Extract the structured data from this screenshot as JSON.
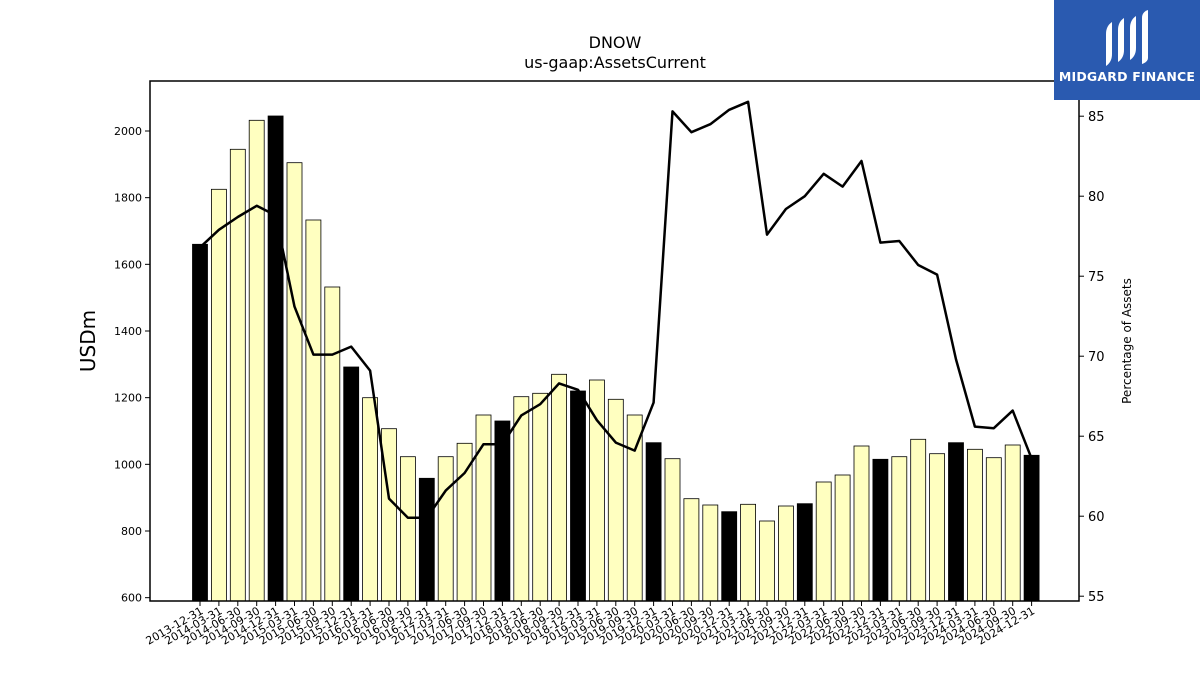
{
  "chart_data": {
    "type": "bar",
    "title": "DNOW",
    "subtitle": "us-gaap:AssetsCurrent",
    "ylabel": "USDm",
    "y2label": "Percentage of Assets",
    "ylim": [
      590,
      2150
    ],
    "y2lim": [
      54.7,
      87.2
    ],
    "yticks": [
      600,
      800,
      1000,
      1200,
      1400,
      1600,
      1800,
      2000
    ],
    "y2ticks": [
      55,
      60,
      65,
      70,
      75,
      80,
      85
    ],
    "categories": [
      "2013-12-31",
      "2014-03-31",
      "2014-06-30",
      "2014-09-30",
      "2014-12-31",
      "2015-03-31",
      "2015-06-30",
      "2015-09-30",
      "2015-12-31",
      "2016-03-31",
      "2016-06-30",
      "2016-09-30",
      "2016-12-31",
      "2017-03-31",
      "2017-06-30",
      "2017-09-30",
      "2017-12-31",
      "2018-03-31",
      "2018-06-30",
      "2018-09-30",
      "2018-12-31",
      "2019-03-31",
      "2019-06-30",
      "2019-09-30",
      "2019-12-31",
      "2020-03-31",
      "2020-06-30",
      "2020-09-30",
      "2020-12-31",
      "2021-03-31",
      "2021-06-30",
      "2021-09-30",
      "2021-12-31",
      "2022-03-31",
      "2022-06-30",
      "2022-09-30",
      "2022-12-31",
      "2023-03-31",
      "2023-06-30",
      "2023-09-30",
      "2023-12-31",
      "2024-03-31",
      "2024-06-30",
      "2024-09-30",
      "2024-12-31"
    ],
    "series": [
      {
        "values": [
          1660,
          1825,
          1945,
          2032,
          2045,
          1905,
          1733,
          1532,
          1292,
          1200,
          1107,
          1023,
          958,
          1023,
          1063,
          1148,
          1130,
          1203,
          1213,
          1270,
          1220,
          1253,
          1195,
          1148,
          1065,
          1017,
          897,
          878,
          858,
          880,
          830,
          875,
          882,
          947,
          968,
          1055,
          1015,
          1023,
          1075,
          1032,
          1065,
          1045,
          1020,
          1058,
          1027
        ],
        "year_end": [
          true,
          false,
          false,
          false,
          true,
          false,
          false,
          false,
          true,
          false,
          false,
          false,
          true,
          false,
          false,
          false,
          true,
          false,
          false,
          false,
          true,
          false,
          false,
          false,
          true,
          false,
          false,
          false,
          true,
          false,
          false,
          false,
          true,
          false,
          false,
          false,
          true,
          false,
          false,
          false,
          true,
          false,
          false,
          false,
          true
        ]
      },
      {
        "axis": "right",
        "type": "line",
        "values": [
          76.8,
          77.9,
          78.7,
          79.4,
          78.8,
          73.1,
          70.1,
          70.1,
          70.6,
          69.1,
          61.1,
          59.9,
          59.9,
          61.6,
          62.7,
          64.5,
          64.5,
          66.3,
          67.0,
          68.3,
          67.9,
          66.0,
          64.6,
          64.1,
          67.1,
          85.3,
          84.0,
          84.5,
          85.4,
          85.9,
          77.6,
          79.2,
          80.0,
          81.4,
          80.6,
          82.2,
          77.1,
          77.2,
          75.7,
          75.1,
          69.8,
          65.6,
          65.5,
          66.6,
          63.6
        ]
      }
    ],
    "colors": {
      "bar_fill": "#ffffc0",
      "bar_year_end": "#000000",
      "bar_edge": "#000000",
      "line": "#000000"
    }
  },
  "logo": {
    "text": "MIDGARD FINANCE",
    "background": "#2a5ab0",
    "icon": "midgard-logo-mark"
  }
}
